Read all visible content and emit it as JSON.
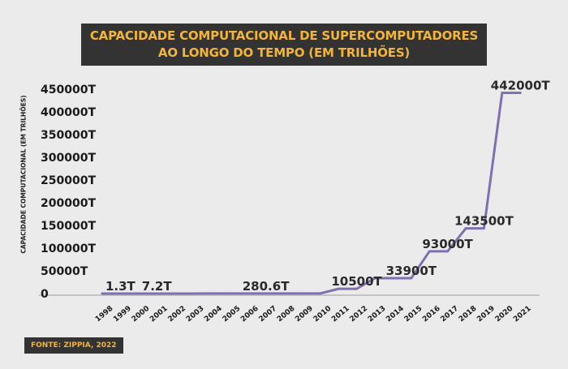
{
  "title_line1": "CAPACIDADE COMPUTACIONAL DE SUPERCOMPUTADORES",
  "title_line2": "AO LONGO DO TEMPO (EM TRILHÕES)",
  "source": "FONTE: ZIPPIA, 2022",
  "colors": {
    "line": "#8070b0",
    "title_bg": "#333333",
    "title_text": "#f2b53a",
    "background": "#ebebeb"
  },
  "chart_data": {
    "type": "line",
    "title": "CAPACIDADE COMPUTACIONAL DE SUPERCOMPUTADORES AO LONGO DO TEMPO (EM TRILHÕES)",
    "xlabel": "",
    "ylabel": "CAPACIDADE COMPUTACIONAL (EM TRILHÕES)",
    "ylim": [
      0,
      450000
    ],
    "grid": false,
    "ytick_labels": [
      "0",
      "50000T",
      "100000T",
      "150000T",
      "200000T",
      "250000T",
      "300000T",
      "350000T",
      "400000T",
      "450000T"
    ],
    "x": [
      "1998",
      "1999",
      "2000",
      "2001",
      "2002",
      "2003",
      "2004",
      "2005",
      "2006",
      "2007",
      "2008",
      "2009",
      "2010",
      "2011",
      "2012",
      "2013",
      "2014",
      "2015",
      "2016",
      "2017",
      "2018",
      "2019",
      "2020",
      "2021"
    ],
    "values": [
      1.3,
      1.3,
      7.2,
      7.2,
      7.2,
      7.2,
      280.6,
      280.6,
      280.6,
      280.6,
      280.6,
      280.6,
      280.6,
      10500,
      10500,
      33900,
      33900,
      33900,
      93000,
      93000,
      143500,
      143500,
      442000,
      442000
    ],
    "data_labels": [
      {
        "year": "1999",
        "value": 1.3,
        "text": "1.3T"
      },
      {
        "year": "2001",
        "value": 7.2,
        "text": "7.2T"
      },
      {
        "year": "2007",
        "value": 280.6,
        "text": "280.6T"
      },
      {
        "year": "2012",
        "value": 10500,
        "text": "10500T"
      },
      {
        "year": "2015",
        "value": 33900,
        "text": "33900T"
      },
      {
        "year": "2017",
        "value": 93000,
        "text": "93000T"
      },
      {
        "year": "2019",
        "value": 143500,
        "text": "143500T"
      },
      {
        "year": "2021",
        "value": 442000,
        "text": "442000T"
      }
    ]
  }
}
